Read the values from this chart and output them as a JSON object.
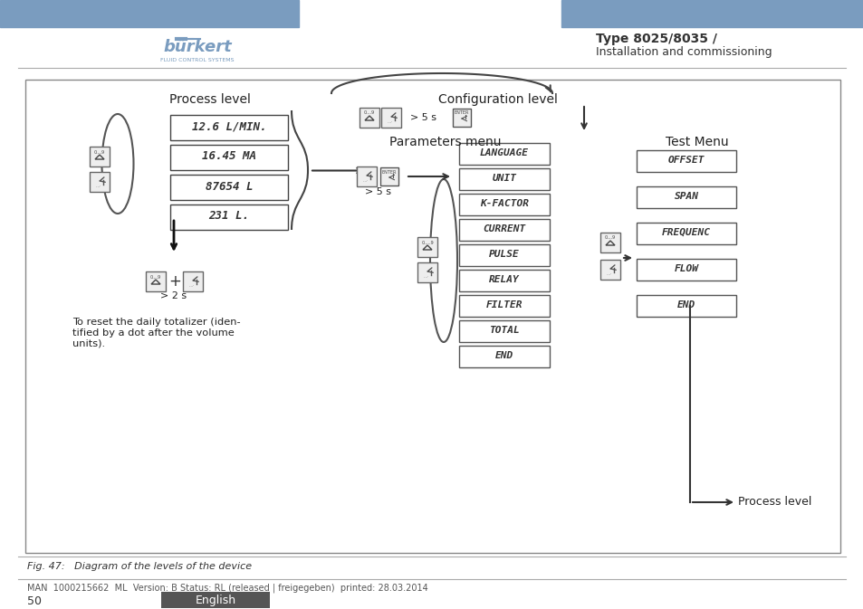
{
  "title_type": "Type 8025/8035 /",
  "title_sub": "Installation and commissioning",
  "header_color": "#7a9cbf",
  "fig_caption": "Fig. 47:   Diagram of the levels of the device",
  "footer_text": "MAN  1000215662  ML  Version: B Status: RL (released | freigegeben)  printed: 28.03.2014",
  "page_num": "50",
  "english_btn_color": "#555555",
  "process_level_label": "Process level",
  "config_level_label": "Configuration level",
  "params_menu_label": "Parameters menu",
  "test_menu_label": "Test Menu",
  "display_boxes": [
    "12.6 L/MIN.",
    "16.45 MA",
    "87654 L",
    "231 L."
  ],
  "param_menu_items": [
    "LANGUAGE",
    "UNIT",
    "K-FACTOR",
    "CURRENT",
    "PULSE",
    "RELAY",
    "FILTER",
    "TOTAL",
    "END"
  ],
  "test_menu_items": [
    "OFFSET",
    "SPAN",
    "FREQUENC",
    "FLOW",
    "END"
  ],
  "reset_text": "To reset the daily totalizer (iden-\ntified by a dot after the volume\nunits).",
  "process_level_right": "Process level",
  "gt5s_top": "> 5 s",
  "gt5s_mid": "> 5 s",
  "gt2s": "> 2 s"
}
